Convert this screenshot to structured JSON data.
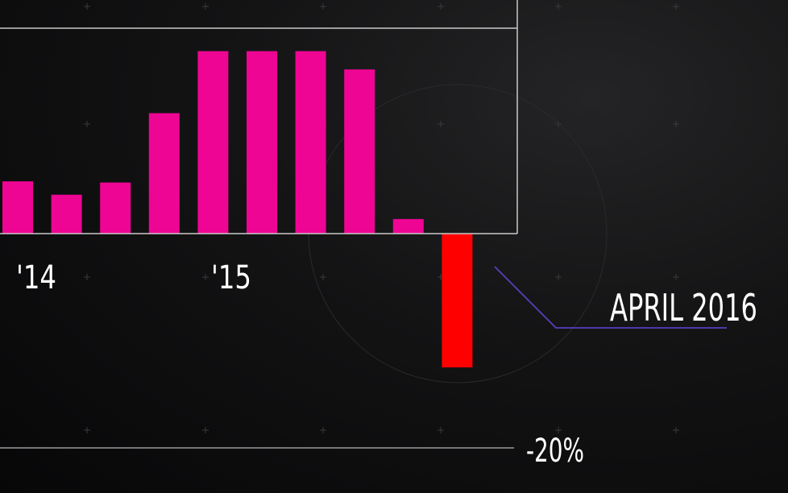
{
  "chart_data": {
    "type": "bar",
    "title": "",
    "xlabel": "",
    "ylabel": "",
    "x_tick_labels": [
      "'14",
      "'15"
    ],
    "y_tick_labels": [
      "-20%"
    ],
    "ylim": [
      -20,
      15
    ],
    "values": [
      4.3,
      3.2,
      4.2,
      9.9,
      15.0,
      15.0,
      15.0,
      13.5,
      1.2,
      -11.0
    ],
    "highlight_index": 9,
    "annotation": {
      "label": "APRIL 2016",
      "target_index": 9
    },
    "colors": {
      "positive": "#ee0594",
      "negative": "#fe0000",
      "frame": "#c9c9c9",
      "text": "#ffffff",
      "annotation_line": "#5a3ec0",
      "background": "#0b0b0c"
    },
    "grid": false
  }
}
